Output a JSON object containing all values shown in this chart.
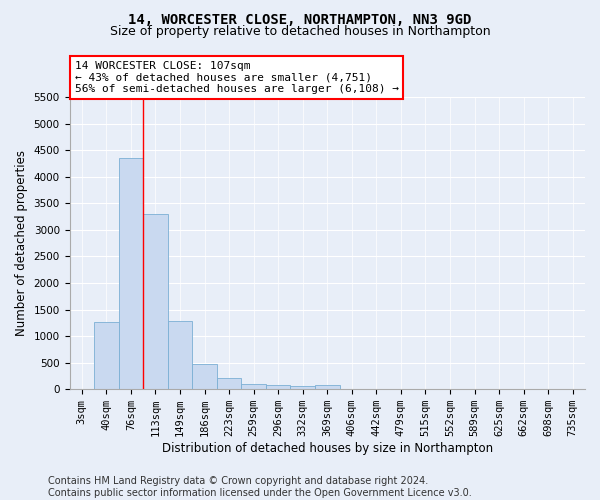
{
  "title": "14, WORCESTER CLOSE, NORTHAMPTON, NN3 9GD",
  "subtitle": "Size of property relative to detached houses in Northampton",
  "xlabel": "Distribution of detached houses by size in Northampton",
  "ylabel": "Number of detached properties",
  "bar_labels": [
    "3sqm",
    "40sqm",
    "76sqm",
    "113sqm",
    "149sqm",
    "186sqm",
    "223sqm",
    "259sqm",
    "296sqm",
    "332sqm",
    "369sqm",
    "406sqm",
    "442sqm",
    "479sqm",
    "515sqm",
    "552sqm",
    "589sqm",
    "625sqm",
    "662sqm",
    "698sqm",
    "735sqm"
  ],
  "bar_values": [
    0,
    1260,
    4350,
    3300,
    1280,
    480,
    220,
    95,
    75,
    55,
    85,
    0,
    0,
    0,
    0,
    0,
    0,
    0,
    0,
    0,
    0
  ],
  "bar_color": "#c9d9f0",
  "bar_edge_color": "#7bafd4",
  "vline_x": 3.0,
  "vline_color": "red",
  "annotation_text": "14 WORCESTER CLOSE: 107sqm\n← 43% of detached houses are smaller (4,751)\n56% of semi-detached houses are larger (6,108) →",
  "annotation_box_color": "white",
  "annotation_box_edge_color": "red",
  "ylim": [
    0,
    5500
  ],
  "yticks": [
    0,
    500,
    1000,
    1500,
    2000,
    2500,
    3000,
    3500,
    4000,
    4500,
    5000,
    5500
  ],
  "footer_text": "Contains HM Land Registry data © Crown copyright and database right 2024.\nContains public sector information licensed under the Open Government Licence v3.0.",
  "background_color": "#e8eef8",
  "grid_color": "#ffffff",
  "title_fontsize": 10,
  "subtitle_fontsize": 9,
  "axis_label_fontsize": 8.5,
  "tick_fontsize": 7.5,
  "annotation_fontsize": 8,
  "footer_fontsize": 7
}
